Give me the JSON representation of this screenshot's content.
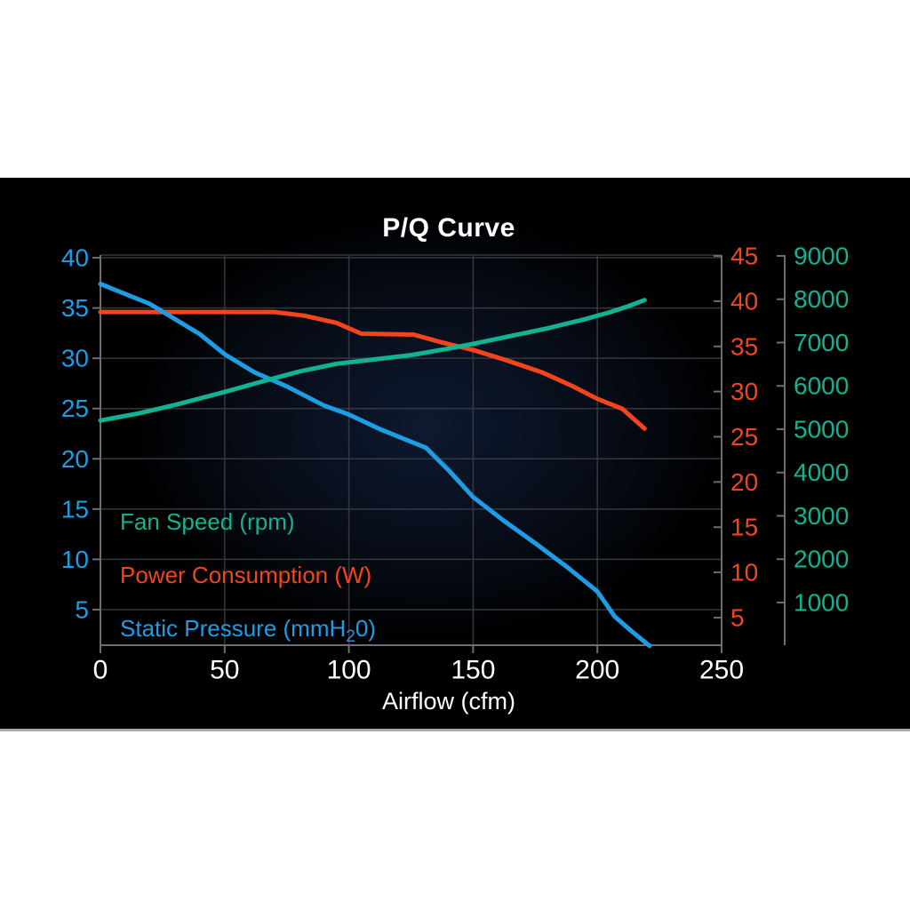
{
  "title": "P/Q Curve",
  "colors": {
    "background_band": "#ffffff",
    "panel_background": "#000000",
    "panel_bottom_border": "#a9a9a9",
    "title_text": "#ffffff",
    "x_axis_text": "#ffffff",
    "grid_line": "#34383e",
    "axis_line": "#6b6f74",
    "static_pressure": "#1e9ce4",
    "power": "#f4441c",
    "fan_speed": "#12b392"
  },
  "chart_data": {
    "type": "line",
    "title": "P/Q Curve",
    "grid": true,
    "x_axis": {
      "label": "Airflow (cfm)",
      "ticks": [
        0,
        50,
        100,
        150,
        200,
        250
      ],
      "range": [
        0,
        250
      ],
      "color": "#ffffff"
    },
    "y_axes": {
      "static_pressure": {
        "label": "Static Pressure (mmH20)",
        "side": "left",
        "ticks": [
          40,
          35,
          30,
          25,
          20,
          15,
          10,
          5
        ],
        "range_top": 40.27,
        "range_bottom": 1.46,
        "color": "#1e9ce4"
      },
      "power": {
        "label": "Power Consumption (W)",
        "side": "right-inner",
        "ticks": [
          45,
          40,
          35,
          30,
          25,
          20,
          15,
          10,
          5
        ],
        "range_top": 45.1,
        "range_bottom": 1.95,
        "color": "#f4441c"
      },
      "fan_speed": {
        "label": "Fan Speed (rpm)",
        "side": "right-outer",
        "ticks": [
          9000,
          8000,
          7000,
          6000,
          5000,
          4000,
          3000,
          2000,
          1000
        ],
        "range_top": 9020,
        "range_bottom": 15,
        "color": "#12b392"
      }
    },
    "series": [
      {
        "id": "power",
        "name": "Power Consumption (W)",
        "axis": "power",
        "color": "#f4441c",
        "points": [
          [
            0,
            38.8
          ],
          [
            40,
            38.8
          ],
          [
            70,
            38.8
          ],
          [
            82,
            38.4
          ],
          [
            95,
            37.6
          ],
          [
            105,
            36.4
          ],
          [
            126,
            36.3
          ],
          [
            138,
            35.4
          ],
          [
            150,
            34.6
          ],
          [
            163,
            33.5
          ],
          [
            178,
            32.1
          ],
          [
            190,
            30.6
          ],
          [
            200,
            29.2
          ],
          [
            210,
            28.1
          ],
          [
            219,
            25.9
          ]
        ]
      },
      {
        "id": "static-pressure",
        "name": "Static Pressure (mmH20)",
        "axis": "static_pressure",
        "color": "#1e9ce4",
        "points": [
          [
            0,
            37.4
          ],
          [
            20,
            35.4
          ],
          [
            40,
            32.4
          ],
          [
            50,
            30.4
          ],
          [
            62,
            28.6
          ],
          [
            75,
            27.2
          ],
          [
            90,
            25.3
          ],
          [
            100,
            24.4
          ],
          [
            112,
            23.0
          ],
          [
            122,
            22.0
          ],
          [
            131,
            21.1
          ],
          [
            140,
            18.9
          ],
          [
            150,
            16.2
          ],
          [
            162,
            13.9
          ],
          [
            175,
            11.6
          ],
          [
            188,
            9.2
          ],
          [
            200,
            6.8
          ],
          [
            207,
            4.3
          ],
          [
            214,
            2.8
          ],
          [
            221,
            1.4
          ]
        ]
      },
      {
        "id": "fan-speed",
        "name": "Fan Speed (rpm)",
        "axis": "fan_speed",
        "color": "#12b392",
        "points": [
          [
            0,
            5200
          ],
          [
            15,
            5360
          ],
          [
            30,
            5560
          ],
          [
            50,
            5860
          ],
          [
            65,
            6100
          ],
          [
            80,
            6330
          ],
          [
            95,
            6510
          ],
          [
            110,
            6610
          ],
          [
            125,
            6710
          ],
          [
            140,
            6860
          ],
          [
            150,
            6970
          ],
          [
            165,
            7150
          ],
          [
            180,
            7330
          ],
          [
            195,
            7540
          ],
          [
            205,
            7700
          ],
          [
            212,
            7830
          ],
          [
            219,
            7980
          ]
        ]
      }
    ],
    "legend": {
      "position": "inside-bottom-left",
      "items": [
        {
          "id": "fan-speed",
          "color": "#12b392",
          "prefix": "Fan Speed (rpm)",
          "sub": "",
          "suffix": ""
        },
        {
          "id": "power",
          "color": "#f4441c",
          "prefix": "Power Consumption (W)",
          "sub": "",
          "suffix": ""
        },
        {
          "id": "static-pressure",
          "color": "#1e9ce4",
          "prefix": "Static Pressure (mmH",
          "sub": "2",
          "suffix": "0)"
        }
      ]
    }
  }
}
